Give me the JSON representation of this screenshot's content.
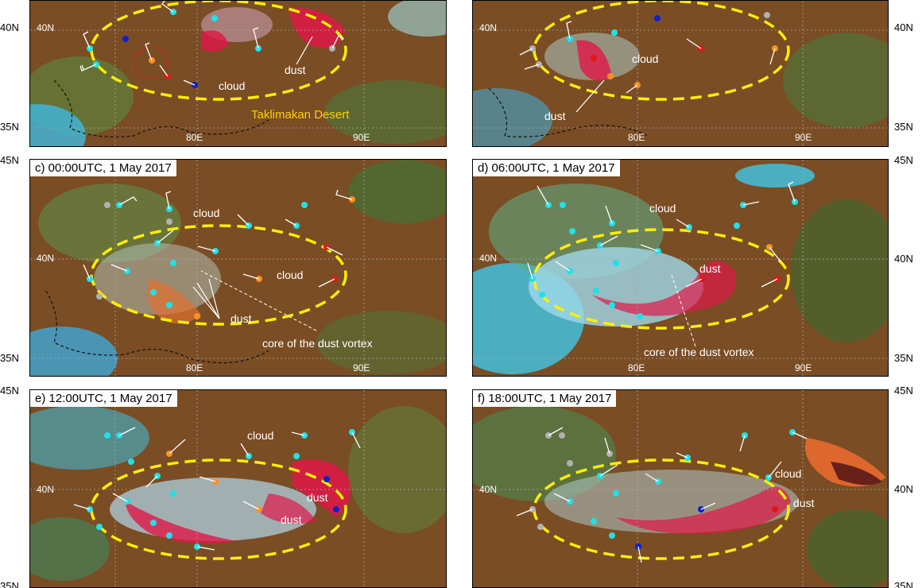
{
  "panels": [
    {
      "id": "a",
      "label": "",
      "notes": {
        "cloud": "cloud",
        "dust": "dust",
        "desert": "Taklimakan Desert"
      }
    },
    {
      "id": "b",
      "label": "",
      "notes": {
        "cloud": "cloud",
        "dust": "dust"
      }
    },
    {
      "id": "c",
      "label": "c) 00:00UTC, 1 May 2017",
      "notes": {
        "cloud1": "cloud",
        "cloud2": "cloud",
        "dust": "dust",
        "core": "core of the dust vortex"
      }
    },
    {
      "id": "d",
      "label": "d) 06:00UTC, 1 May 2017",
      "notes": {
        "cloud": "cloud",
        "dust": "dust",
        "core": "core of the dust vortex"
      }
    },
    {
      "id": "e",
      "label": "e) 12:00UTC, 1 May 2017",
      "notes": {
        "cloud": "cloud",
        "dust1": "dust",
        "dust2": "dust"
      }
    },
    {
      "id": "f",
      "label": "f) 18:00UTC, 1 May 2017",
      "notes": {
        "cloud": "cloud",
        "dust": "dust"
      }
    }
  ],
  "ticks": {
    "lat40": "40N",
    "lat35": "35N",
    "lat45": "45N",
    "lon80": "80E",
    "lon90": "90E",
    "lat35cut": "35N"
  },
  "colors": {
    "ellipse": "#ffee00",
    "dust": "#e8104a",
    "cloud": "#a8d8e6",
    "base": "#7a4a22",
    "station_cyan": "#20e0e8",
    "station_orange": "#ff9020",
    "station_red": "#e01818",
    "station_blue": "#1020d0",
    "station_gray": "#b0b0b0"
  }
}
